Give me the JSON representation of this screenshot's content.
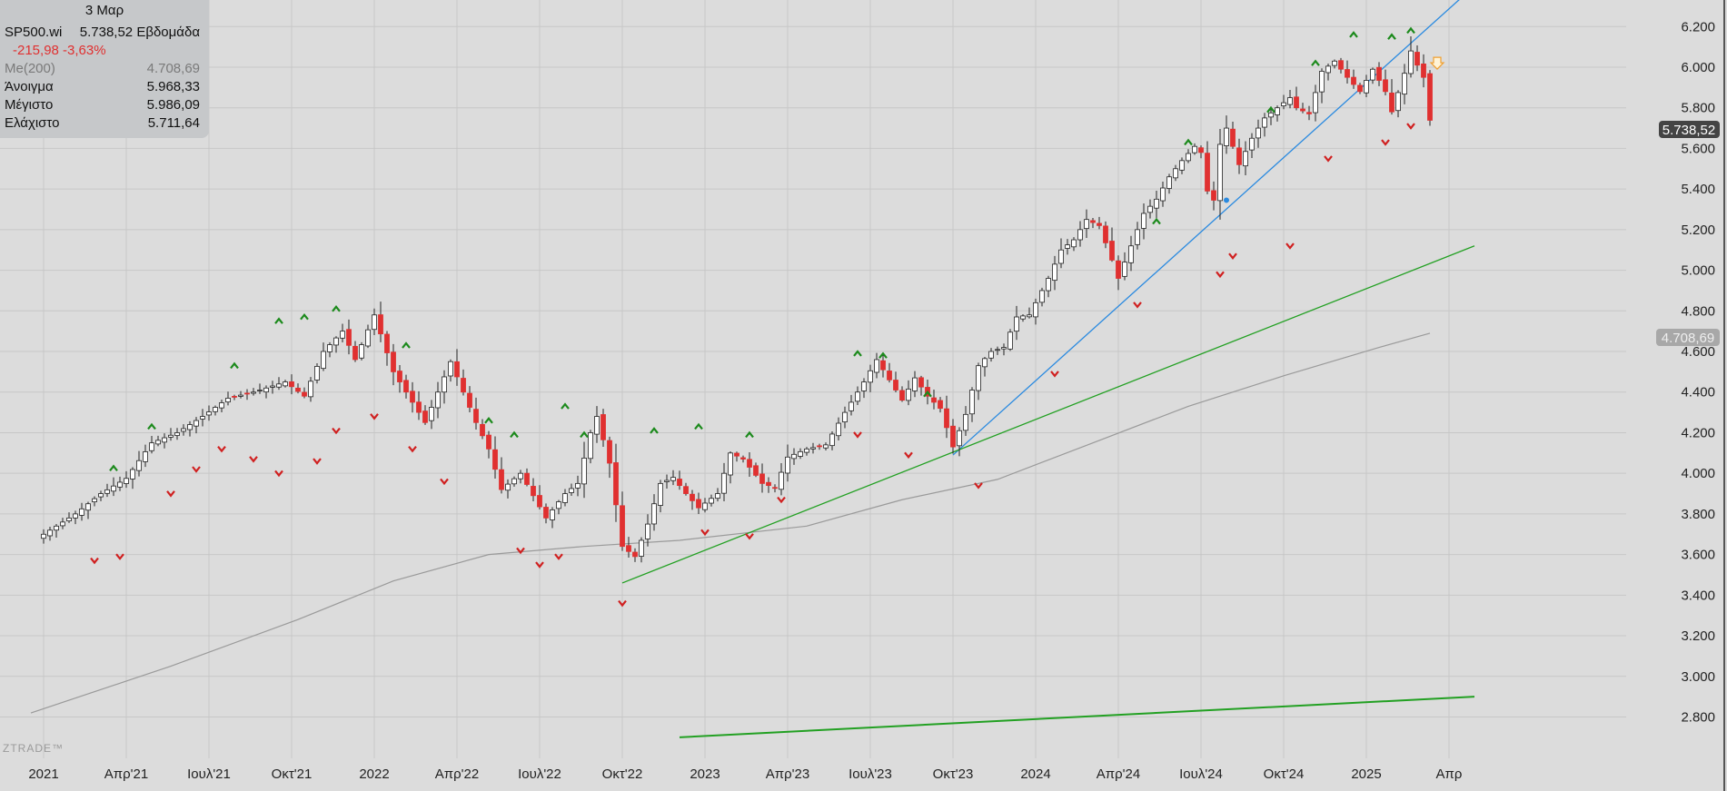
{
  "info": {
    "date": "3 Μαρ",
    "symbol": "SP500.wi",
    "price": "5.738,52",
    "period": "Εβδομάδα",
    "change": "-215,98 -3,63%",
    "ma_label": "Me(200)",
    "ma_value": "4.708,69",
    "open_label": "Άνοιγμα",
    "open_value": "5.968,33",
    "high_label": "Μέγιστο",
    "high_value": "5.986,09",
    "low_label": "Ελάχιστο",
    "low_value": "5.711,64"
  },
  "watermark": "ZTRADE™",
  "price_badge": "5.738,52",
  "ma_badge": "4.708,69",
  "colors": {
    "background": "#dcdcdc",
    "bull_candle": "#ffffff",
    "bear_candle": "#e03030",
    "trend_blue": "#2a8ae0",
    "trend_green": "#22a022",
    "ma_line": "#9a9a9a",
    "arrow_up": "#1c8a1c",
    "arrow_down": "#d02020"
  },
  "chart_data": {
    "type": "candlestick",
    "timeframe": "weekly",
    "symbol": "SP500.wi",
    "ylim": [
      2700,
      6280
    ],
    "y_ticks": [
      2800,
      3000,
      3200,
      3400,
      3600,
      3800,
      4000,
      4200,
      4400,
      4600,
      4800,
      5000,
      5200,
      5400,
      5600,
      5800,
      6000,
      6200
    ],
    "y_tick_labels": [
      "2.800",
      "3.000",
      "3.200",
      "3.400",
      "3.600",
      "3.800",
      "4.000",
      "4.200",
      "4.400",
      "4.600",
      "4.800",
      "5.000",
      "5.200",
      "5.400",
      "5.600",
      "5.800",
      "6.000",
      "6.200"
    ],
    "x_labels": [
      "2021",
      "Απρ'21",
      "Ιουλ'21",
      "Οκτ'21",
      "2022",
      "Απρ'22",
      "Ιουλ'22",
      "Οκτ'22",
      "2023",
      "Απρ'23",
      "Ιουλ'23",
      "Οκτ'23",
      "2024",
      "Απρ'24",
      "Ιουλ'24",
      "Οκτ'24",
      "2025",
      "Απρ"
    ],
    "x_label_weeks": [
      0,
      13,
      26,
      39,
      52,
      65,
      78,
      91,
      104,
      117,
      130,
      143,
      156,
      169,
      182,
      195,
      208,
      221
    ],
    "close_path": [
      [
        0,
        3700
      ],
      [
        5,
        3800
      ],
      [
        9,
        3900
      ],
      [
        13,
        3975
      ],
      [
        17,
        4150
      ],
      [
        21,
        4200
      ],
      [
        25,
        4280
      ],
      [
        29,
        4370
      ],
      [
        33,
        4400
      ],
      [
        38,
        4450
      ],
      [
        41,
        4380
      ],
      [
        44,
        4600
      ],
      [
        47,
        4700
      ],
      [
        49,
        4560
      ],
      [
        52,
        4780
      ],
      [
        55,
        4500
      ],
      [
        58,
        4350
      ],
      [
        60,
        4250
      ],
      [
        64,
        4550
      ],
      [
        68,
        4250
      ],
      [
        70,
        4120
      ],
      [
        72,
        3920
      ],
      [
        75,
        4000
      ],
      [
        79,
        3780
      ],
      [
        82,
        3900
      ],
      [
        84,
        3950
      ],
      [
        86,
        4200
      ],
      [
        87,
        4280
      ],
      [
        89,
        4050
      ],
      [
        91,
        3640
      ],
      [
        93,
        3590
      ],
      [
        95,
        3750
      ],
      [
        97,
        3950
      ],
      [
        99,
        3980
      ],
      [
        101,
        3900
      ],
      [
        103,
        3830
      ],
      [
        106,
        3900
      ],
      [
        108,
        4100
      ],
      [
        110,
        4070
      ],
      [
        113,
        3950
      ],
      [
        115,
        3930
      ],
      [
        117,
        4080
      ],
      [
        120,
        4120
      ],
      [
        123,
        4140
      ],
      [
        126,
        4300
      ],
      [
        129,
        4450
      ],
      [
        131,
        4560
      ],
      [
        133,
        4460
      ],
      [
        135,
        4360
      ],
      [
        137,
        4470
      ],
      [
        139,
        4380
      ],
      [
        141,
        4320
      ],
      [
        143,
        4130
      ],
      [
        145,
        4290
      ],
      [
        147,
        4530
      ],
      [
        149,
        4600
      ],
      [
        151,
        4620
      ],
      [
        153,
        4770
      ],
      [
        155,
        4780
      ],
      [
        158,
        4960
      ],
      [
        160,
        5100
      ],
      [
        162,
        5150
      ],
      [
        164,
        5250
      ],
      [
        166,
        5220
      ],
      [
        168,
        5050
      ],
      [
        169,
        4960
      ],
      [
        171,
        5120
      ],
      [
        173,
        5280
      ],
      [
        175,
        5350
      ],
      [
        177,
        5460
      ],
      [
        179,
        5540
      ],
      [
        181,
        5610
      ],
      [
        182,
        5580
      ],
      [
        183,
        5390
      ],
      [
        184,
        5345
      ],
      [
        185,
        5620
      ],
      [
        186,
        5700
      ],
      [
        188,
        5520
      ],
      [
        190,
        5650
      ],
      [
        192,
        5750
      ],
      [
        194,
        5800
      ],
      [
        196,
        5850
      ],
      [
        197,
        5800
      ],
      [
        199,
        5770
      ],
      [
        201,
        5980
      ],
      [
        203,
        6030
      ],
      [
        205,
        5950
      ],
      [
        207,
        5880
      ],
      [
        209,
        5990
      ],
      [
        211,
        5880
      ],
      [
        212,
        5780
      ],
      [
        214,
        5970
      ],
      [
        215,
        6080
      ],
      [
        216,
        6010
      ],
      [
        217,
        5950
      ],
      [
        218,
        5739
      ]
    ],
    "last_candle": {
      "open": 5968.33,
      "high": 5986.09,
      "low": 5711.64,
      "close": 5738.52
    },
    "ma200": {
      "name": "Me(200)",
      "last_value": 4708.69,
      "points": [
        [
          -2,
          2820
        ],
        [
          20,
          3050
        ],
        [
          40,
          3280
        ],
        [
          55,
          3470
        ],
        [
          70,
          3600
        ],
        [
          85,
          3640
        ],
        [
          100,
          3670
        ],
        [
          120,
          3740
        ],
        [
          135,
          3870
        ],
        [
          150,
          3970
        ],
        [
          165,
          4150
        ],
        [
          180,
          4330
        ],
        [
          195,
          4480
        ],
        [
          210,
          4620
        ],
        [
          218,
          4690
        ]
      ]
    },
    "trendlines": [
      {
        "color": "blue",
        "from": [
          143,
          4090
        ],
        "to": [
          225,
          6400
        ]
      },
      {
        "color": "green",
        "from": [
          91,
          3460
        ],
        "to": [
          225,
          5120
        ]
      },
      {
        "color": "green",
        "from": [
          100,
          2700
        ],
        "to": [
          225,
          2900
        ]
      }
    ],
    "swing_highs": [
      [
        11,
        3995
      ],
      [
        17,
        4200
      ],
      [
        30,
        4500
      ],
      [
        37,
        4720
      ],
      [
        41,
        4740
      ],
      [
        46,
        4780
      ],
      [
        57,
        4600
      ],
      [
        70,
        4230
      ],
      [
        74,
        4160
      ],
      [
        82,
        4300
      ],
      [
        85,
        4160
      ],
      [
        96,
        4180
      ],
      [
        103,
        4200
      ],
      [
        111,
        4160
      ],
      [
        128,
        4560
      ],
      [
        132,
        4550
      ],
      [
        139,
        4360
      ],
      [
        175,
        5210
      ],
      [
        180,
        5600
      ],
      [
        193,
        5760
      ],
      [
        200,
        5990
      ],
      [
        206,
        6130
      ],
      [
        212,
        6120
      ],
      [
        215,
        6150
      ]
    ],
    "swing_lows": [
      [
        8,
        3600
      ],
      [
        12,
        3620
      ],
      [
        20,
        3930
      ],
      [
        24,
        4050
      ],
      [
        28,
        4150
      ],
      [
        33,
        4100
      ],
      [
        37,
        4030
      ],
      [
        43,
        4090
      ],
      [
        46,
        4240
      ],
      [
        52,
        4310
      ],
      [
        58,
        4150
      ],
      [
        63,
        3990
      ],
      [
        75,
        3650
      ],
      [
        78,
        3580
      ],
      [
        81,
        3620
      ],
      [
        91,
        3390
      ],
      [
        104,
        3740
      ],
      [
        111,
        3720
      ],
      [
        116,
        3900
      ],
      [
        128,
        4220
      ],
      [
        136,
        4120
      ],
      [
        147,
        3970
      ],
      [
        159,
        4520
      ],
      [
        172,
        4860
      ],
      [
        185,
        5010
      ],
      [
        187,
        5100
      ],
      [
        196,
        5150
      ],
      [
        202,
        5580
      ],
      [
        211,
        5660
      ],
      [
        215,
        5740
      ]
    ]
  }
}
